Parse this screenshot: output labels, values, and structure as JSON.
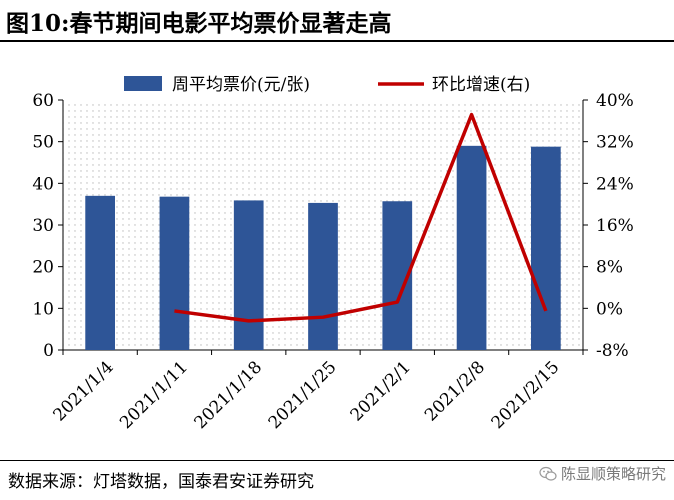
{
  "figure": {
    "title": "图10:春节期间电影平均票价显著走高",
    "source": "数据来源：灯塔数据，国泰君安证券研究",
    "watermark": "陈显顺策略研究",
    "watermark_icon": "wechat-icon"
  },
  "chart_data": {
    "type": "bar",
    "categories": [
      "2021/1/4",
      "2021/1/11",
      "2021/1/18",
      "2021/1/25",
      "2021/2/1",
      "2021/2/8",
      "2021/2/15"
    ],
    "series": [
      {
        "name": "周平均票价(元/张)",
        "type": "bar",
        "axis": "left",
        "color": "#2e5597",
        "values": [
          37.0,
          36.8,
          35.9,
          35.3,
          35.7,
          49.0,
          48.8
        ]
      },
      {
        "name": "环比增速(右)",
        "type": "line",
        "axis": "right",
        "color": "#c00000",
        "values": [
          null,
          -0.5,
          -2.4,
          -1.7,
          1.2,
          37.2,
          -0.5
        ]
      }
    ],
    "y_left": {
      "min": 0,
      "max": 60,
      "step": 10,
      "tick_labels": [
        "0",
        "10",
        "20",
        "30",
        "40",
        "50",
        "60"
      ]
    },
    "y_right": {
      "min": -8,
      "max": 40,
      "step": 8,
      "tick_labels": [
        "-8%",
        "0%",
        "8%",
        "16%",
        "24%",
        "32%",
        "40%"
      ]
    },
    "grid": "dotted",
    "legend": "top"
  }
}
